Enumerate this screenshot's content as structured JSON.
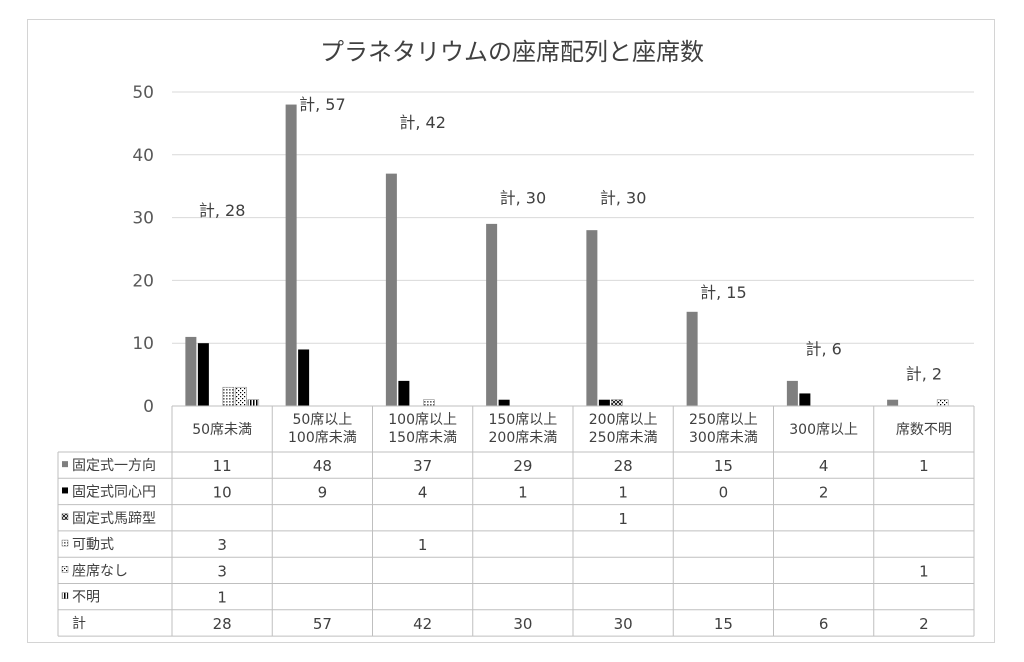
{
  "chart_data": {
    "type": "bar",
    "title": "プラネタリウムの座席配列と座席数",
    "categories": [
      [
        "50席未満"
      ],
      [
        "50席以上",
        "100席未満"
      ],
      [
        "100席以上",
        "150席未満"
      ],
      [
        "150席以上",
        "200席未満"
      ],
      [
        "200席以上",
        "250席未満"
      ],
      [
        "250席以上",
        "300席未満"
      ],
      [
        "300席以上"
      ],
      [
        "席数不明"
      ]
    ],
    "ylim": [
      0,
      50
    ],
    "yticks": [
      0,
      10,
      20,
      30,
      40,
      50
    ],
    "grid": true,
    "series": [
      {
        "name": "固定式一方向",
        "color": "#7f7f7f",
        "pattern": "solid",
        "values": [
          11,
          48,
          37,
          29,
          28,
          15,
          4,
          1
        ]
      },
      {
        "name": "固定式同心円",
        "color": "#000000",
        "pattern": "solid",
        "values": [
          10,
          9,
          4,
          1,
          1,
          0,
          2,
          null
        ]
      },
      {
        "name": "固定式馬蹄型",
        "color": "#000000",
        "pattern": "cross",
        "values": [
          null,
          null,
          null,
          null,
          1,
          null,
          null,
          null
        ]
      },
      {
        "name": "可動式",
        "color": "#7f7f7f",
        "pattern": "dots",
        "values": [
          3,
          null,
          1,
          null,
          null,
          null,
          null,
          null
        ]
      },
      {
        "name": "座席なし",
        "color": "#000000",
        "pattern": "sparse",
        "values": [
          3,
          null,
          null,
          null,
          null,
          null,
          null,
          1
        ]
      },
      {
        "name": "不明",
        "color": "#000000",
        "pattern": "vstripe",
        "values": [
          1,
          null,
          null,
          null,
          null,
          null,
          null,
          null
        ]
      }
    ],
    "total_label": "計",
    "totals": [
      28,
      57,
      42,
      30,
      30,
      15,
      6,
      2
    ],
    "total_point_labels": [
      "計, 28",
      "計, 57",
      "計, 42",
      "計, 30",
      "計, 30",
      "計, 15",
      "計, 6",
      "計, 2"
    ]
  }
}
